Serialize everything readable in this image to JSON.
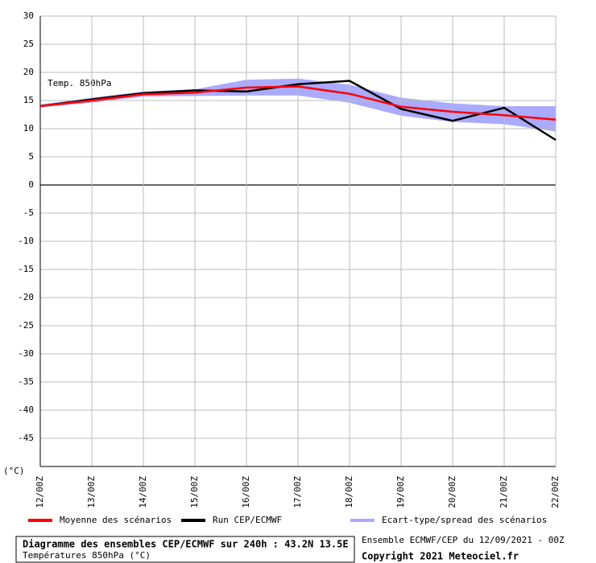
{
  "chart_data": {
    "type": "line",
    "annotation": "Temp. 850hPa",
    "y_unit": "(°C)",
    "categories": [
      "12/00Z",
      "13/00Z",
      "14/00Z",
      "15/00Z",
      "16/00Z",
      "17/00Z",
      "18/00Z",
      "19/00Z",
      "20/00Z",
      "21/00Z",
      "22/00Z"
    ],
    "series": [
      {
        "name": "Moyenne des scénarios",
        "color": "#ff0000",
        "values": [
          14,
          15,
          16.1,
          16.4,
          17.3,
          17.5,
          16.2,
          13.9,
          13.0,
          12.4,
          11.6
        ]
      },
      {
        "name": "Run CEP/ECMWF",
        "color": "#000000",
        "values": [
          14,
          15.2,
          16.3,
          16.8,
          16.6,
          17.9,
          18.5,
          13.5,
          11.4,
          13.7,
          8
        ]
      },
      {
        "name": "Ecart-type/spread des scénarios",
        "color": "#aaaaff",
        "high": [
          14.3,
          15.5,
          16.6,
          17,
          18.7,
          18.9,
          17.8,
          15.5,
          14.5,
          14,
          14
        ],
        "low": [
          13.8,
          14.6,
          15.7,
          15.8,
          15.9,
          15.9,
          14.6,
          12.3,
          11.2,
          10.8,
          9.5
        ]
      }
    ],
    "ylim": [
      -50,
      30
    ],
    "yticks": [
      30,
      25,
      20,
      15,
      10,
      5,
      0,
      -5,
      -10,
      -15,
      -20,
      -25,
      -30,
      -35,
      -40,
      -45
    ],
    "grid": true,
    "footer": {
      "title": "Diagramme des ensembles CEP/ECMWF sur 240h : 43.2N 13.5E",
      "subtitle": "Températures 850hPa (°C)",
      "run": "Ensemble ECMWF/CEP du 12/09/2021 - 00Z",
      "copyright": "Copyright 2021 Meteociel.fr"
    }
  }
}
